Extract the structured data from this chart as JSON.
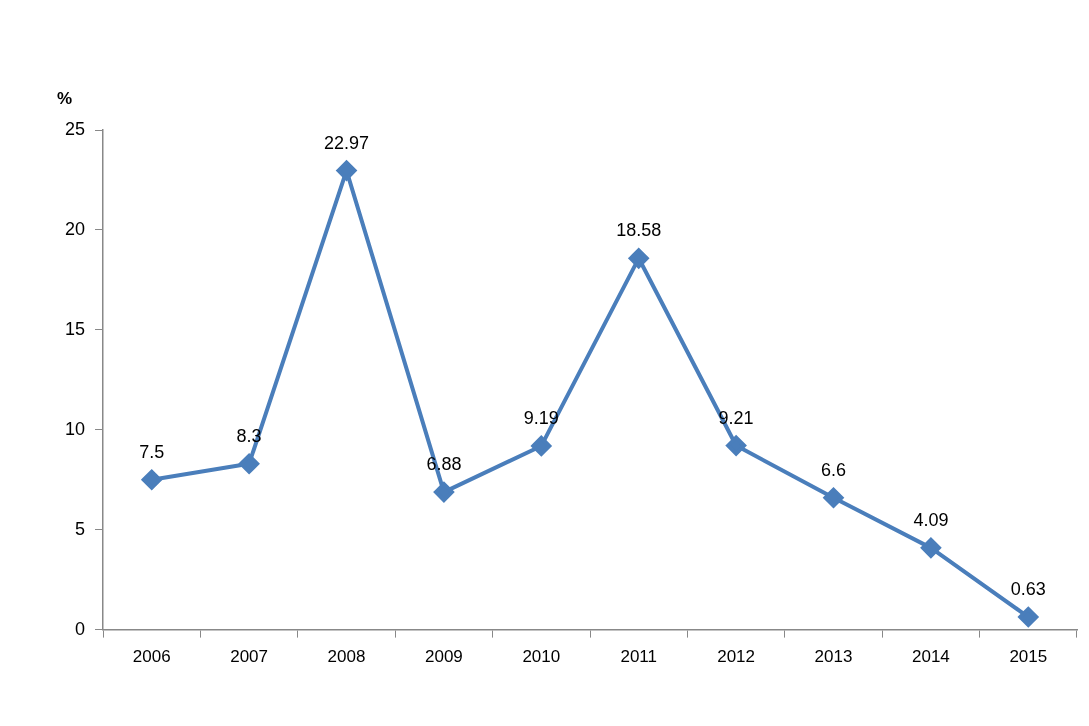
{
  "chart_data": {
    "type": "line",
    "ylabel": "%",
    "categories": [
      "2006",
      "2007",
      "2008",
      "2009",
      "2010",
      "2011",
      "2012",
      "2013",
      "2014",
      "2015"
    ],
    "series": [
      {
        "color": "#4a7ebb",
        "values": [
          7.5,
          8.3,
          22.97,
          6.88,
          9.19,
          18.58,
          9.21,
          6.6,
          4.09,
          0.63
        ]
      }
    ],
    "ylim": [
      0,
      25
    ],
    "yticks": [
      0,
      5,
      10,
      15,
      20,
      25
    ],
    "grid": false,
    "legend": false,
    "marker": "diamond",
    "line_style": "solid",
    "data_labels": true
  }
}
